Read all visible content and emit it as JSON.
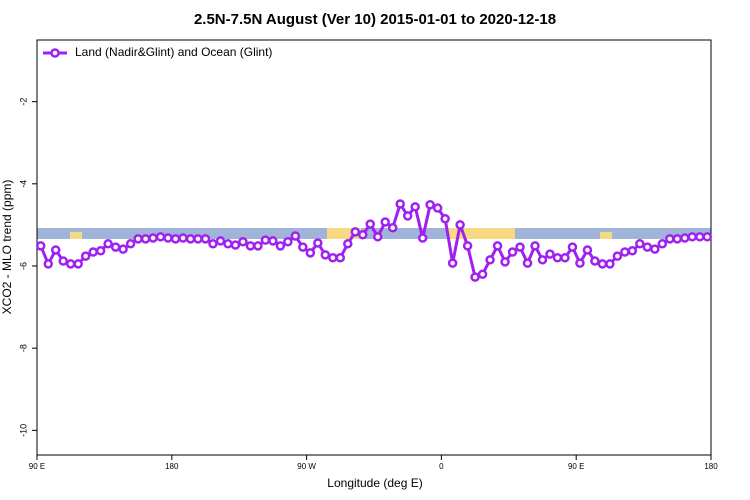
{
  "chart_data": {
    "type": "line",
    "title": "2.5N-7.5N August (Ver 10)   2015-01-01 to 2020-12-18",
    "x_label": "Longitude (deg E)",
    "y_label": "XCO2 - MLO trend (ppm)",
    "xlim": [
      90,
      540
    ],
    "ylim": [
      -10.6,
      -0.5
    ],
    "xticks": [
      {
        "value": 90,
        "label": "90 E"
      },
      180,
      {
        "value": 270,
        "label": "90 W"
      },
      {
        "value": 360,
        "label": "0"
      },
      {
        "value": 450,
        "label": "90 E"
      },
      {
        "value": 540,
        "label": "180"
      }
    ],
    "yticks": [
      -2,
      -4,
      -6,
      -8,
      -10
    ],
    "legend": "top-left",
    "x": [
      92.5,
      97.5,
      102.5,
      107.5,
      112.5,
      117.5,
      122.5,
      127.5,
      132.5,
      137.5,
      142.5,
      147.5,
      152.5,
      157.5,
      162.5,
      167.5,
      172.5,
      177.5,
      182.5,
      187.5,
      192.5,
      197.5,
      202.5,
      207.5,
      212.5,
      217.5,
      222.5,
      227.5,
      232.5,
      237.5,
      242.5,
      247.5,
      252.5,
      257.5,
      262.5,
      267.5,
      272.5,
      277.5,
      282.5,
      287.5,
      292.5,
      297.5,
      302.5,
      307.5,
      312.5,
      317.5,
      322.5,
      327.5,
      332.5,
      337.5,
      342.5,
      347.5,
      352.5,
      357.5,
      362.5,
      367.5,
      372.5,
      377.5,
      382.5,
      387.5,
      392.5,
      397.5,
      402.5,
      407.5,
      412.5,
      417.5,
      422.5,
      427.5,
      432.5,
      437.5,
      442.5,
      447.5,
      452.5,
      457.5,
      462.5,
      467.5,
      472.5,
      477.5,
      482.5,
      487.5,
      492.5,
      497.5,
      502.5,
      507.5,
      512.5,
      517.5,
      522.5,
      527.5,
      532.5,
      537.5
    ],
    "series": [
      {
        "name": "Land (Nadir&Glint) and Ocean (Glint)",
        "color": "#a020f0",
        "values": [
          -5.51,
          -5.95,
          -5.61,
          -5.88,
          -5.95,
          -5.95,
          -5.76,
          -5.66,
          -5.63,
          -5.46,
          -5.54,
          -5.59,
          -5.46,
          -5.34,
          -5.34,
          -5.32,
          -5.29,
          -5.32,
          -5.34,
          -5.32,
          -5.34,
          -5.34,
          -5.34,
          -5.46,
          -5.39,
          -5.46,
          -5.49,
          -5.41,
          -5.51,
          -5.51,
          -5.37,
          -5.39,
          -5.51,
          -5.41,
          -5.27,
          -5.54,
          -5.68,
          -5.44,
          -5.73,
          -5.8,
          -5.8,
          -5.46,
          -5.17,
          -5.24,
          -4.98,
          -5.29,
          -4.93,
          -5.07,
          -4.49,
          -4.78,
          -4.56,
          -5.32,
          -4.51,
          -4.59,
          -4.85,
          -5.93,
          -5.0,
          -5.51,
          -6.27,
          -6.2,
          -5.85,
          -5.51,
          -5.9,
          -5.66,
          -5.54,
          -5.93,
          -5.51,
          -5.85,
          -5.71,
          -5.8,
          -5.8,
          -5.54,
          -5.93,
          -5.61,
          -5.88,
          -5.95,
          -5.95,
          -5.76,
          -5.66,
          -5.63,
          -5.46,
          -5.54,
          -5.59,
          -5.46,
          -5.34,
          -5.34,
          -5.32,
          -5.29,
          -5.29,
          -5.29
        ]
      }
    ]
  }
}
